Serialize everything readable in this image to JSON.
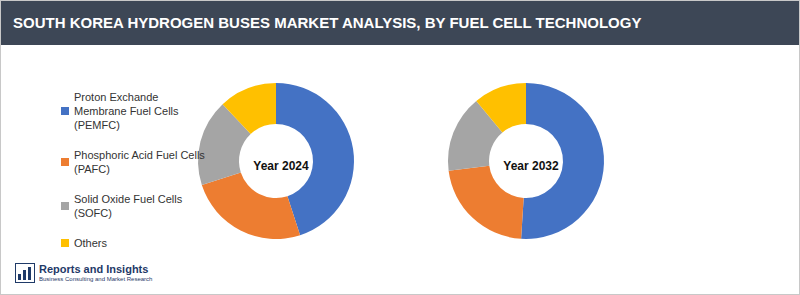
{
  "header": {
    "title": "SOUTH KOREA HYDROGEN BUSES MARKET ANALYSIS, BY FUEL CELL TECHNOLOGY"
  },
  "logo": {
    "name": "Reports and Insights",
    "tagline": "Business Consulting and Market Research"
  },
  "chart_data": [
    {
      "type": "pie",
      "title": "Year 2024",
      "categories": [
        "Proton Exchande Membrane Fuel Cells (PEMFC)",
        "Phosphoric Acid Fuel Cells (PAFC)",
        "Solid Oxide Fuel Cells (SOFC)",
        "Others"
      ],
      "values": [
        45,
        25,
        18,
        12
      ],
      "colors": [
        "#4472c4",
        "#ed7d31",
        "#a5a5a5",
        "#ffc000"
      ],
      "legend": "left"
    },
    {
      "type": "pie",
      "title": "Year 2032",
      "categories": [
        "Proton Exchande Membrane Fuel Cells (PEMFC)",
        "Phosphoric Acid Fuel Cells (PAFC)",
        "Solid Oxide Fuel Cells (SOFC)",
        "Others"
      ],
      "values": [
        51,
        22,
        16,
        11
      ],
      "colors": [
        "#4472c4",
        "#ed7d31",
        "#a5a5a5",
        "#ffc000"
      ]
    }
  ]
}
